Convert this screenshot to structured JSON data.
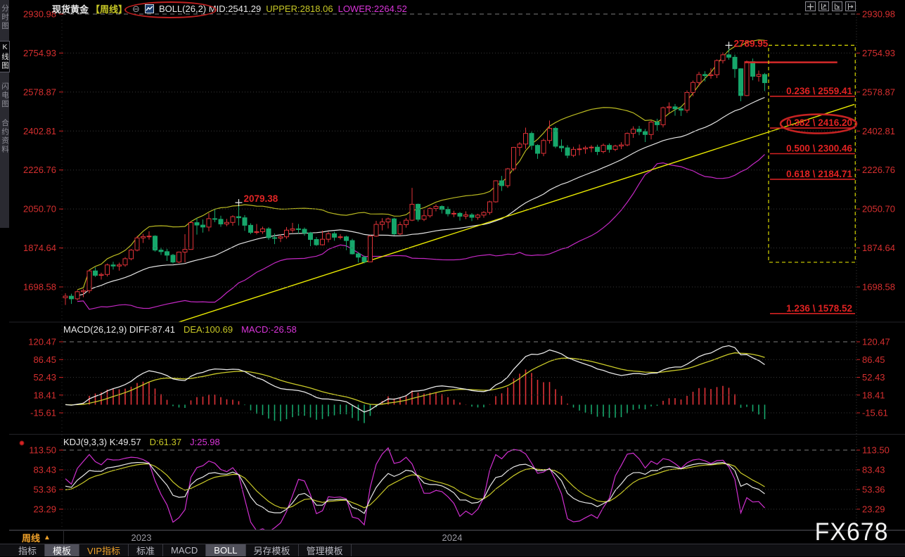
{
  "header": {
    "symbol": "现货黄金",
    "period": "【周线】",
    "collapse_icon": "⊖",
    "boll_mid": "BOLL(26,2) MID:2541.29",
    "upper": "UPPER:2818.06",
    "lower": "LOWER:2264.52"
  },
  "sidebar": {
    "items": [
      {
        "label": "分时图",
        "active": false
      },
      {
        "label": "K线图",
        "active": true
      },
      {
        "label": "闪电图",
        "active": false
      },
      {
        "label": "合约资料",
        "active": false
      }
    ]
  },
  "toolbar": {
    "icons": [
      "pan-tool",
      "y-axis-scale",
      "x-axis-scale",
      "shift-right"
    ]
  },
  "macd_header": {
    "title": "MACD(26,12,9) DIFF:87.41",
    "dea": "DEA:100.69",
    "macd": "MACD:-26.58"
  },
  "kdj_header": {
    "title": "KDJ(9,3,3) K:49.57",
    "d": "D:61.37",
    "j": "J:25.98"
  },
  "bottom": {
    "period_button": "周线",
    "period_arrow": "▲",
    "year_marks": [
      {
        "label": "2023",
        "index": 14
      },
      {
        "label": "2024",
        "index": 66
      }
    ],
    "watermark": "FX678"
  },
  "tabs": [
    {
      "label": "指标",
      "active": false
    },
    {
      "label": "模板",
      "active": true
    },
    {
      "label": "VIP指标",
      "vip": true
    },
    {
      "label": "标准",
      "active": false
    },
    {
      "label": "MACD",
      "active": false
    },
    {
      "label": "BOLL",
      "active": true
    },
    {
      "label": "另存模板",
      "active": false
    },
    {
      "label": "管理模板",
      "active": false
    }
  ],
  "chart_data": {
    "type": "candlestick",
    "instrument": "现货黄金 (Spot Gold)",
    "interval": "周线 weekly",
    "price_axis": [
      2930.98,
      2754.93,
      2578.87,
      2402.81,
      2226.76,
      2050.7,
      1874.64,
      1698.58
    ],
    "macd_axis": [
      120.47,
      86.45,
      52.43,
      18.41,
      -15.61
    ],
    "kdj_axis": [
      113.5,
      83.43,
      53.36,
      23.29
    ],
    "indicators": {
      "boll": {
        "period": 26,
        "width": 2,
        "mid": 2541.29,
        "upper": 2818.06,
        "lower": 2264.52
      },
      "macd": {
        "fast": 26,
        "slow": 12,
        "signal": 9,
        "diff": 87.41,
        "dea": 100.69,
        "macd": -26.58
      },
      "kdj": {
        "n": 9,
        "m1": 3,
        "m2": 3,
        "k": 49.57,
        "d": 61.37,
        "j": 25.98
      }
    },
    "candles": [
      [
        1650,
        1670,
        1617,
        1657
      ],
      [
        1657,
        1668,
        1622,
        1645
      ],
      [
        1645,
        1684,
        1638,
        1677
      ],
      [
        1677,
        1690,
        1652,
        1682
      ],
      [
        1682,
        1775,
        1670,
        1771
      ],
      [
        1771,
        1787,
        1744,
        1751
      ],
      [
        1751,
        1763,
        1732,
        1755
      ],
      [
        1755,
        1804,
        1746,
        1798
      ],
      [
        1798,
        1812,
        1777,
        1793
      ],
      [
        1793,
        1808,
        1772,
        1798
      ],
      [
        1798,
        1833,
        1790,
        1826
      ],
      [
        1826,
        1870,
        1819,
        1865
      ],
      [
        1865,
        1929,
        1859,
        1920
      ],
      [
        1920,
        1938,
        1897,
        1926
      ],
      [
        1926,
        1950,
        1912,
        1928
      ],
      [
        1928,
        1932,
        1858,
        1865
      ],
      [
        1865,
        1876,
        1843,
        1858
      ],
      [
        1858,
        1871,
        1816,
        1842
      ],
      [
        1842,
        1848,
        1804,
        1811
      ],
      [
        1811,
        1858,
        1806,
        1856
      ],
      [
        1856,
        1937,
        1809,
        1868
      ],
      [
        1868,
        1994,
        1866,
        1989
      ],
      [
        1989,
        2010,
        1935,
        1978
      ],
      [
        1978,
        2003,
        1944,
        1969
      ],
      [
        1969,
        2032,
        1950,
        2007
      ],
      [
        2007,
        2049,
        1991,
        2004
      ],
      [
        2004,
        2020,
        1970,
        1983
      ],
      [
        1983,
        2006,
        1973,
        1990
      ],
      [
        1990,
        2022,
        1975,
        2016
      ],
      [
        2016,
        2079.38,
        1976,
        2011
      ],
      [
        2011,
        2023,
        1952,
        1977
      ],
      [
        1977,
        1986,
        1937,
        1945
      ],
      [
        1945,
        1983,
        1936,
        1948
      ],
      [
        1948,
        1971,
        1938,
        1961
      ],
      [
        1961,
        1969,
        1911,
        1921
      ],
      [
        1921,
        1940,
        1892,
        1919
      ],
      [
        1919,
        1936,
        1901,
        1925
      ],
      [
        1925,
        1969,
        1916,
        1955
      ],
      [
        1955,
        1988,
        1944,
        1961
      ],
      [
        1961,
        1983,
        1940,
        1959
      ],
      [
        1959,
        1967,
        1930,
        1942
      ],
      [
        1942,
        1947,
        1883,
        1913
      ],
      [
        1913,
        1924,
        1884,
        1889
      ],
      [
        1889,
        1953,
        1886,
        1914
      ],
      [
        1914,
        1948,
        1900,
        1939
      ],
      [
        1939,
        1948,
        1907,
        1923
      ],
      [
        1923,
        1937,
        1913,
        1925
      ],
      [
        1925,
        1930,
        1865,
        1908
      ],
      [
        1908,
        1916,
        1845,
        1848
      ],
      [
        1848,
        1856,
        1809,
        1833
      ],
      [
        1833,
        1840,
        1805,
        1812
      ],
      [
        1812,
        1933,
        1811,
        1928
      ],
      [
        1928,
        1997,
        1925,
        1981
      ],
      [
        1981,
        2009,
        1954,
        1992
      ],
      [
        1992,
        2012,
        1963,
        2006
      ],
      [
        2006,
        2011,
        1932,
        1938
      ],
      [
        1938,
        1993,
        1933,
        1980
      ],
      [
        1980,
        2010,
        1966,
        2000
      ],
      [
        2000,
        2146,
        1996,
        2072
      ],
      [
        2072,
        2075,
        1994,
        2004
      ],
      [
        2004,
        2047,
        1996,
        2020
      ],
      [
        2020,
        2058,
        2012,
        2053
      ],
      [
        2053,
        2071,
        2040,
        2062
      ],
      [
        2062,
        2067,
        2030,
        2049
      ],
      [
        2049,
        2062,
        2017,
        2029
      ],
      [
        2029,
        2043,
        2014,
        2031
      ],
      [
        2031,
        2037,
        1998,
        2018
      ],
      [
        2018,
        2040,
        2005,
        2024
      ],
      [
        2024,
        2032,
        1996,
        2013
      ],
      [
        2013,
        2029,
        2002,
        2023
      ],
      [
        2023,
        2041,
        2011,
        2035
      ],
      [
        2035,
        2088,
        2025,
        2083
      ],
      [
        2083,
        2180,
        2079,
        2178
      ],
      [
        2178,
        2200,
        2132,
        2156
      ],
      [
        2156,
        2236,
        2146,
        2232
      ],
      [
        2232,
        2331,
        2222,
        2329
      ],
      [
        2329,
        2353,
        2290,
        2344
      ],
      [
        2344,
        2418,
        2322,
        2392
      ],
      [
        2392,
        2400,
        2318,
        2338
      ],
      [
        2338,
        2343,
        2277,
        2302
      ],
      [
        2302,
        2368,
        2289,
        2360
      ],
      [
        2360,
        2450,
        2346,
        2415
      ],
      [
        2415,
        2422,
        2325,
        2334
      ],
      [
        2334,
        2365,
        2308,
        2327
      ],
      [
        2327,
        2339,
        2280,
        2293
      ],
      [
        2293,
        2332,
        2285,
        2320
      ],
      [
        2320,
        2342,
        2293,
        2322
      ],
      [
        2322,
        2336,
        2300,
        2327
      ],
      [
        2327,
        2339,
        2307,
        2330
      ],
      [
        2330,
        2341,
        2294,
        2310
      ],
      [
        2310,
        2346,
        2302,
        2338
      ],
      [
        2338,
        2347,
        2305,
        2320
      ],
      [
        2320,
        2341,
        2312,
        2335
      ],
      [
        2335,
        2352,
        2321,
        2340
      ],
      [
        2340,
        2396,
        2334,
        2392
      ],
      [
        2392,
        2424,
        2372,
        2411
      ],
      [
        2411,
        2426,
        2384,
        2400
      ],
      [
        2400,
        2412,
        2353,
        2387
      ],
      [
        2387,
        2452,
        2365,
        2443
      ],
      [
        2443,
        2458,
        2404,
        2431
      ],
      [
        2431,
        2513,
        2419,
        2508
      ],
      [
        2508,
        2532,
        2486,
        2512
      ],
      [
        2512,
        2525,
        2472,
        2503
      ],
      [
        2503,
        2515,
        2471,
        2497
      ],
      [
        2497,
        2586,
        2485,
        2577
      ],
      [
        2577,
        2631,
        2560,
        2622
      ],
      [
        2622,
        2670,
        2605,
        2658
      ],
      [
        2658,
        2673,
        2627,
        2653
      ],
      [
        2653,
        2686,
        2639,
        2657
      ],
      [
        2657,
        2726,
        2642,
        2721
      ],
      [
        2721,
        2758,
        2708,
        2747
      ],
      [
        2747,
        2789.95,
        2725,
        2736
      ],
      [
        2736,
        2748,
        2643,
        2684
      ],
      [
        2684,
        2686,
        2537,
        2563
      ],
      [
        2563,
        2721,
        2560,
        2716
      ],
      [
        2716,
        2730,
        2632,
        2650
      ],
      [
        2650,
        2676,
        2626,
        2658
      ],
      [
        2658,
        2665,
        2583,
        2621
      ]
    ],
    "annotations": {
      "swing_high_labels": [
        {
          "index": 30,
          "price": 2079.38,
          "label": "2079.38"
        },
        {
          "index": 112,
          "price": 2789.95,
          "label": "2789.95"
        }
      ],
      "resistance_line": {
        "price": 2713,
        "from_index": 115,
        "to_index": 130.5
      },
      "trendline": {
        "from_index": 20,
        "from_price": 1540,
        "to_index": 133,
        "to_price": 2523
      },
      "fib_box": {
        "top_price": 2789.95,
        "bottom_price": 1810,
        "from_index": 119,
        "to_index": 133.5
      },
      "fib_levels": [
        {
          "ratio": "0.236",
          "price": 2559.41,
          "label": "0.236 \\ 2559.41",
          "circled": false
        },
        {
          "ratio": "0.382",
          "price": 2416.2,
          "label": "0.382 \\ 2416.20",
          "circled": true
        },
        {
          "ratio": "0.500",
          "price": 2300.46,
          "label": "0.500 \\ 2300.46",
          "circled": false
        },
        {
          "ratio": "0.618",
          "price": 2184.71,
          "label": "0.618 \\ 2184.71",
          "circled": false
        },
        {
          "ratio": "1.236",
          "price": 1578.52,
          "label": "1.236 \\ 1578.52",
          "circled": false
        }
      ]
    },
    "colors": {
      "up": "#e03238",
      "down": "#16a76b",
      "boll_mid": "#e4e4e4",
      "boll_upper": "#b9b921",
      "boll_lower": "#c428c4",
      "trend": "#e8e800",
      "fib": "#d42222",
      "axis_text": "#d62f2f",
      "dashed_box": "#d8d800",
      "diff_line": "#e8e8e8",
      "dea_line": "#cbcb28",
      "k_line": "#e8e8e8",
      "d_line": "#cbcb28",
      "j_line": "#d02fd0"
    }
  }
}
